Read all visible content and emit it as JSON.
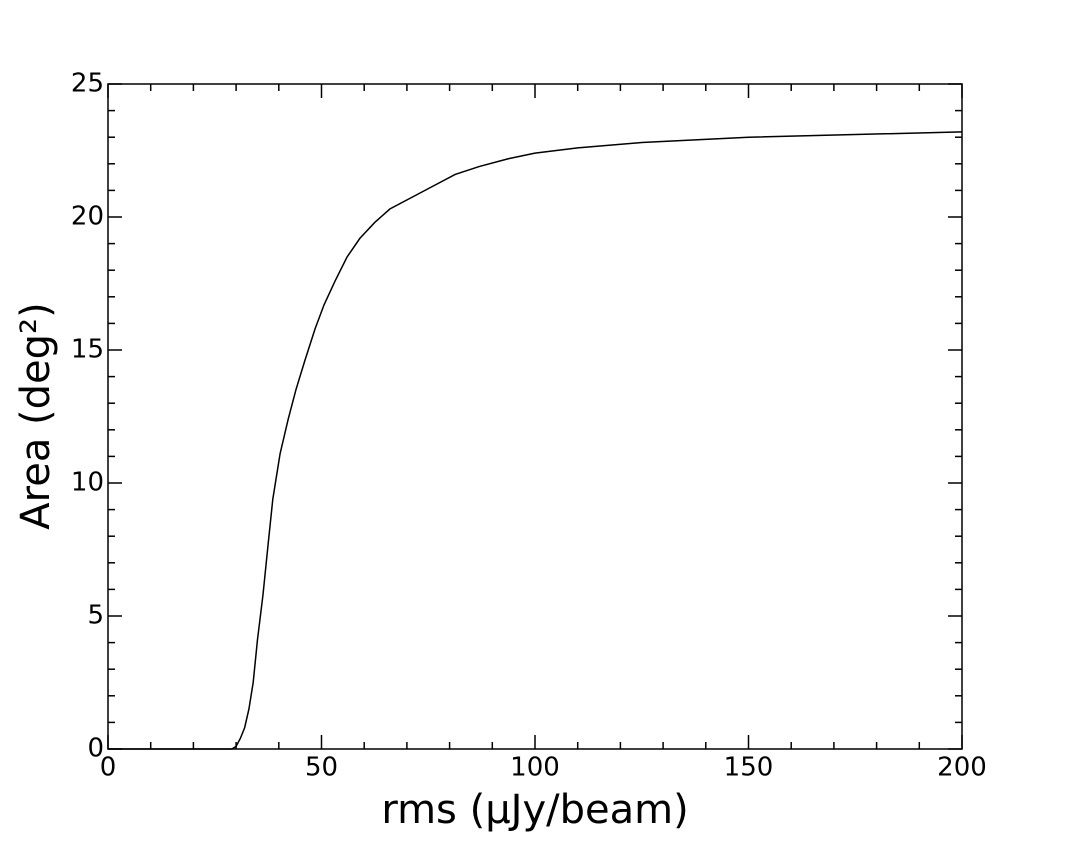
{
  "chart_data": {
    "type": "line",
    "x_label": "rms (μJy/beam)",
    "y_label": "Area (deg²)",
    "x": [
      0,
      29,
      30,
      31,
      32,
      33,
      34,
      35,
      36.3,
      37.5,
      38.6,
      40.3,
      42.2,
      44,
      46.1,
      48.5,
      50.6,
      53.2,
      56,
      59,
      62.5,
      66,
      70.7,
      75.4,
      81.3,
      87,
      94,
      100,
      110,
      125,
      150,
      175,
      200
    ],
    "series": [
      {
        "color": "#000000",
        "values": [
          0,
          0,
          0.1,
          0.4,
          0.8,
          1.5,
          2.5,
          4.1,
          5.8,
          7.7,
          9.4,
          11.1,
          12.4,
          13.5,
          14.6,
          15.8,
          16.7,
          17.6,
          18.5,
          19.2,
          19.8,
          20.3,
          20.7,
          21.1,
          21.6,
          21.9,
          22.2,
          22.4,
          22.6,
          22.8,
          23.0,
          23.1,
          23.2
        ]
      }
    ],
    "xlim": [
      0,
      200
    ],
    "ylim": [
      0,
      25
    ],
    "xticks": [
      0,
      50,
      100,
      150,
      200
    ],
    "yticks": [
      0,
      5,
      10,
      15,
      20,
      25
    ],
    "xminorticks": [
      10,
      20,
      30,
      40,
      60,
      70,
      80,
      90,
      110,
      120,
      130,
      140,
      160,
      170,
      180,
      190
    ],
    "yminorticks": [
      1,
      2,
      3,
      4,
      6,
      7,
      8,
      9,
      11,
      12,
      13,
      14,
      16,
      17,
      18,
      19,
      21,
      22,
      23,
      24
    ]
  }
}
